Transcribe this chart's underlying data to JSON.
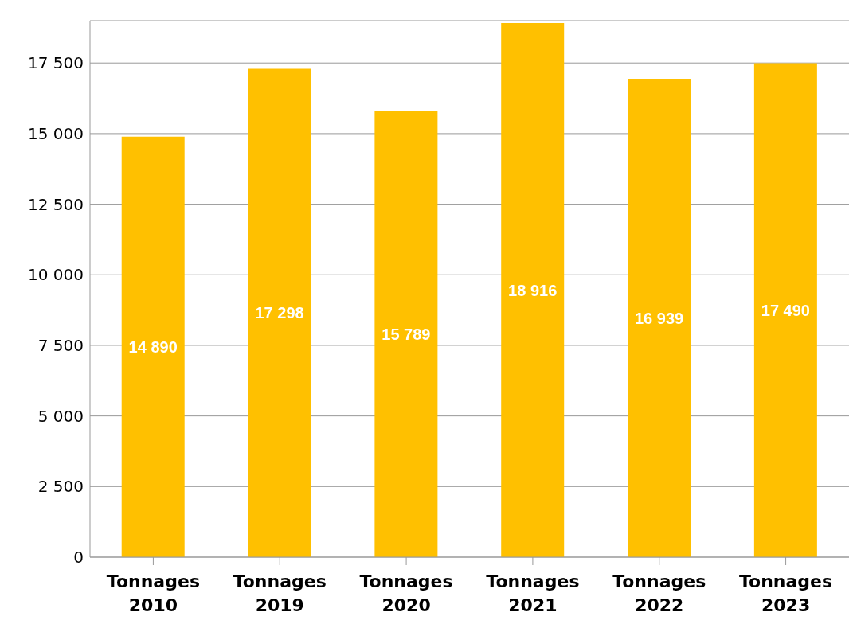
{
  "chart_data": {
    "type": "bar",
    "categories": [
      "Tonnages 2010",
      "Tonnages 2019",
      "Tonnages 2020",
      "Tonnages 2021",
      "Tonnages 2022",
      "Tonnages 2023"
    ],
    "values": [
      14890,
      17298,
      15789,
      18916,
      16939,
      17490
    ],
    "value_labels": [
      "14 890",
      "17 298",
      "15 789",
      "18 916",
      "16 939",
      "17 490"
    ],
    "color": "#ffc000",
    "ylim": [
      0,
      19000
    ],
    "yticks": [
      {
        "value": 0,
        "label": "0"
      },
      {
        "value": 2500,
        "label": "2 500"
      },
      {
        "value": 5000,
        "label": "5 000"
      },
      {
        "value": 7500,
        "label": "7 500"
      },
      {
        "value": 10000,
        "label": "10 000"
      },
      {
        "value": 12500,
        "label": "12 500"
      },
      {
        "value": 15000,
        "label": "15 000"
      },
      {
        "value": 17500,
        "label": "17 500"
      }
    ],
    "grid": "y"
  }
}
